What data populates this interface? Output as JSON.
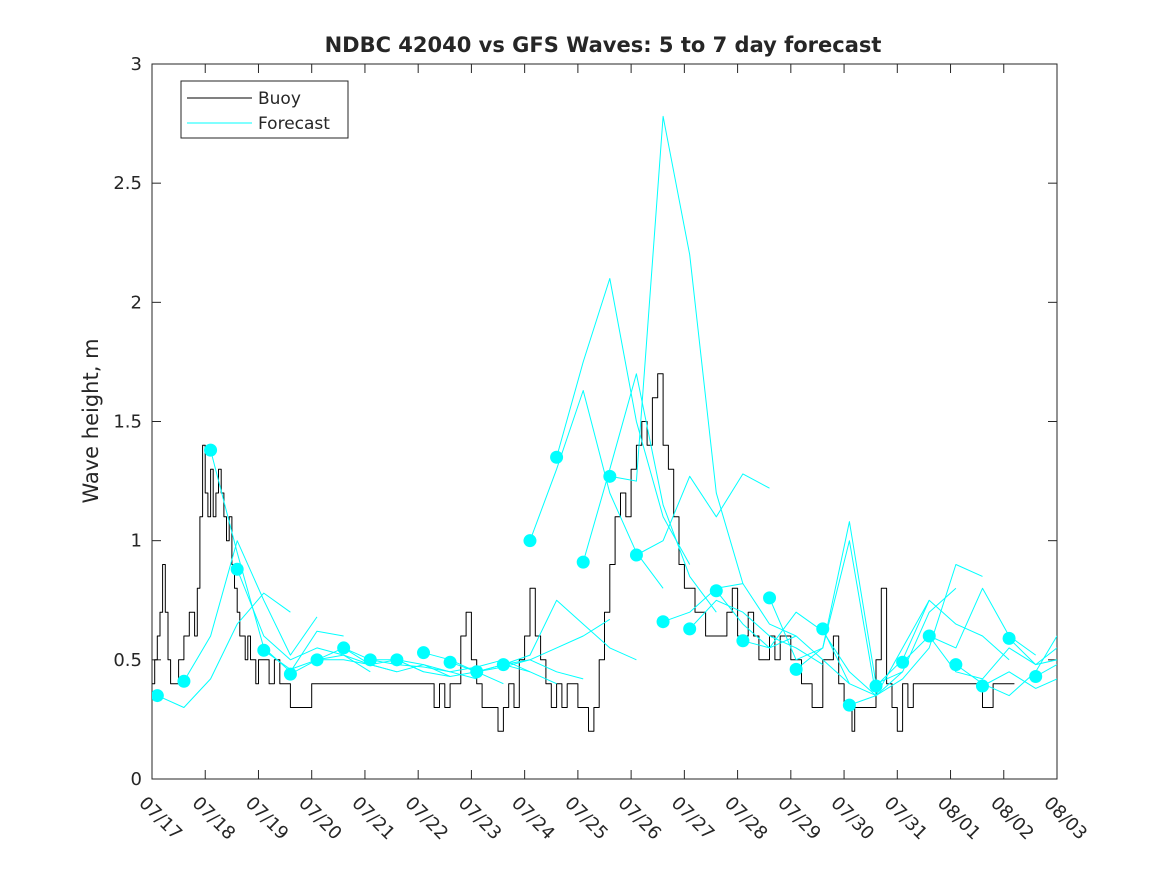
{
  "chart_data": {
    "type": "line",
    "title": "NDBC 42040 vs GFS Waves: 5 to 7 day forecast",
    "xlabel": "",
    "ylabel": "Wave height, m",
    "xlim": [
      0,
      17
    ],
    "ylim": [
      0,
      3
    ],
    "x_ticks": [
      0,
      1,
      2,
      3,
      4,
      5,
      6,
      7,
      8,
      9,
      10,
      11,
      12,
      13,
      14,
      15,
      16,
      17
    ],
    "x_tick_labels": [
      "07/17",
      "07/18",
      "07/19",
      "07/20",
      "07/21",
      "07/22",
      "07/23",
      "07/24",
      "07/25",
      "07/26",
      "07/27",
      "07/28",
      "07/29",
      "07/30",
      "07/31",
      "08/01",
      "08/02",
      "08/03"
    ],
    "y_ticks": [
      0,
      0.5,
      1,
      1.5,
      2,
      2.5,
      3
    ],
    "y_tick_labels": [
      "0",
      "0.5",
      "1",
      "1.5",
      "2",
      "2.5",
      "3"
    ],
    "grid": false,
    "legend": {
      "position": "top-left",
      "entries": [
        "Buoy",
        "Forecast"
      ]
    },
    "colors": {
      "buoy": "#000000",
      "forecast": "#00ffff",
      "axes": "#262626"
    },
    "series": [
      {
        "name": "Buoy",
        "step": true,
        "x": [
          0,
          0.05,
          0.1,
          0.15,
          0.2,
          0.25,
          0.3,
          0.35,
          0.4,
          0.5,
          0.6,
          0.7,
          0.8,
          0.85,
          0.9,
          0.95,
          1.0,
          1.05,
          1.1,
          1.15,
          1.2,
          1.25,
          1.3,
          1.35,
          1.4,
          1.45,
          1.5,
          1.55,
          1.6,
          1.65,
          1.7,
          1.75,
          1.8,
          1.85,
          1.9,
          1.95,
          2.0,
          2.05,
          2.1,
          2.2,
          2.3,
          2.4,
          2.5,
          2.6,
          2.8,
          3.0,
          3.2,
          3.4,
          3.6,
          4.0,
          4.4,
          4.8,
          5.2,
          5.3,
          5.4,
          5.5,
          5.6,
          5.7,
          5.8,
          5.9,
          6.0,
          6.1,
          6.2,
          6.3,
          6.5,
          6.6,
          6.7,
          6.8,
          6.9,
          7.0,
          7.1,
          7.2,
          7.3,
          7.4,
          7.5,
          7.6,
          7.7,
          7.8,
          8.0,
          8.1,
          8.2,
          8.3,
          8.4,
          8.5,
          8.6,
          8.7,
          8.8,
          8.9,
          9.0,
          9.1,
          9.2,
          9.3,
          9.4,
          9.5,
          9.6,
          9.7,
          9.8,
          9.9,
          10.0,
          10.2,
          10.4,
          10.6,
          10.8,
          10.9,
          11.0,
          11.1,
          11.2,
          11.3,
          11.4,
          11.5,
          11.6,
          11.7,
          11.8,
          12.0,
          12.2,
          12.4,
          12.6,
          12.8,
          12.9,
          13.0,
          13.1,
          13.15,
          13.2,
          13.3,
          13.4,
          13.5,
          13.6,
          13.7,
          13.8,
          13.9,
          14.0,
          14.1,
          14.2,
          14.3,
          14.4,
          14.6,
          14.8,
          15.0,
          15.2,
          15.4,
          15.6,
          15.8,
          16.0,
          16.2
        ],
        "values": [
          0.4,
          0.5,
          0.6,
          0.7,
          0.9,
          0.7,
          0.5,
          0.4,
          0.4,
          0.5,
          0.6,
          0.7,
          0.6,
          0.8,
          1.1,
          1.4,
          1.2,
          1.1,
          1.3,
          1.1,
          1.2,
          1.3,
          1.2,
          1.1,
          1.0,
          1.1,
          0.9,
          0.8,
          0.7,
          0.6,
          0.6,
          0.5,
          0.6,
          0.5,
          0.5,
          0.4,
          0.5,
          0.5,
          0.5,
          0.4,
          0.5,
          0.4,
          0.4,
          0.3,
          0.3,
          0.4,
          0.4,
          0.4,
          0.4,
          0.4,
          0.4,
          0.4,
          0.4,
          0.3,
          0.4,
          0.3,
          0.4,
          0.4,
          0.6,
          0.7,
          0.5,
          0.4,
          0.3,
          0.3,
          0.2,
          0.3,
          0.4,
          0.3,
          0.5,
          0.6,
          0.8,
          0.6,
          0.5,
          0.4,
          0.3,
          0.4,
          0.3,
          0.4,
          0.3,
          0.3,
          0.2,
          0.3,
          0.5,
          0.7,
          0.9,
          1.1,
          1.2,
          1.1,
          1.3,
          1.4,
          1.5,
          1.4,
          1.6,
          1.7,
          1.4,
          1.3,
          1.1,
          0.9,
          0.8,
          0.7,
          0.6,
          0.6,
          0.7,
          0.8,
          0.6,
          0.6,
          0.7,
          0.6,
          0.5,
          0.5,
          0.6,
          0.5,
          0.6,
          0.5,
          0.4,
          0.3,
          0.5,
          0.6,
          0.4,
          0.3,
          0.3,
          0.2,
          0.3,
          0.3,
          0.3,
          0.3,
          0.5,
          0.8,
          0.4,
          0.3,
          0.2,
          0.4,
          0.3,
          0.4,
          0.4,
          0.4,
          0.4,
          0.4,
          0.4,
          0.4,
          0.3,
          0.4,
          0.4,
          0.4
        ]
      },
      {
        "name": "Forecast",
        "x": [
          0.1,
          0.6,
          1.1,
          1.6,
          2.1,
          2.6
        ],
        "values": [
          0.35,
          0.3,
          0.42,
          0.65,
          0.78,
          0.7
        ]
      },
      {
        "name": "Forecast",
        "x": [
          0.6,
          1.1,
          1.6,
          2.1,
          2.6,
          3.1
        ],
        "values": [
          0.41,
          0.6,
          1.0,
          0.75,
          0.52,
          0.68
        ]
      },
      {
        "name": "Forecast",
        "x": [
          1.1,
          1.6,
          2.1,
          2.6,
          3.1,
          3.6
        ],
        "values": [
          1.38,
          0.95,
          0.55,
          0.45,
          0.62,
          0.6
        ]
      },
      {
        "name": "Forecast",
        "x": [
          1.6,
          2.1,
          2.6,
          3.1,
          3.6,
          4.1
        ],
        "values": [
          0.88,
          0.6,
          0.5,
          0.55,
          0.52,
          0.45
        ]
      },
      {
        "name": "Forecast",
        "x": [
          2.1,
          2.6,
          3.1,
          3.6,
          4.1,
          4.6
        ],
        "values": [
          0.54,
          0.46,
          0.5,
          0.55,
          0.48,
          0.45
        ]
      },
      {
        "name": "Forecast",
        "x": [
          2.6,
          3.1,
          3.6,
          4.1,
          4.6,
          5.1
        ],
        "values": [
          0.44,
          0.5,
          0.5,
          0.48,
          0.5,
          0.45
        ]
      },
      {
        "name": "Forecast",
        "x": [
          3.1,
          3.6,
          4.1,
          4.6,
          5.1,
          5.6
        ],
        "values": [
          0.5,
          0.52,
          0.48,
          0.45,
          0.48,
          0.43
        ]
      },
      {
        "name": "Forecast",
        "x": [
          3.6,
          4.1,
          4.6,
          5.1,
          5.6,
          6.1
        ],
        "values": [
          0.55,
          0.5,
          0.48,
          0.47,
          0.45,
          0.42
        ]
      },
      {
        "name": "Forecast",
        "x": [
          4.1,
          4.6,
          5.1,
          5.6,
          6.1,
          6.6
        ],
        "values": [
          0.5,
          0.5,
          0.45,
          0.43,
          0.45,
          0.4
        ]
      },
      {
        "name": "Forecast",
        "x": [
          4.6,
          5.1,
          5.6,
          6.1,
          6.6,
          7.1
        ],
        "values": [
          0.5,
          0.48,
          0.45,
          0.47,
          0.5,
          0.45
        ]
      },
      {
        "name": "Forecast",
        "x": [
          5.1,
          5.6,
          6.1,
          6.6,
          7.1,
          7.6
        ],
        "values": [
          0.53,
          0.5,
          0.45,
          0.48,
          0.45,
          0.4
        ]
      },
      {
        "name": "Forecast",
        "x": [
          5.6,
          6.1,
          6.6,
          7.1,
          7.6,
          8.1
        ],
        "values": [
          0.49,
          0.45,
          0.47,
          0.5,
          0.45,
          0.42
        ]
      },
      {
        "name": "Forecast",
        "x": [
          6.1,
          6.6,
          7.1,
          7.6,
          8.1,
          8.6
        ],
        "values": [
          0.45,
          0.48,
          0.5,
          0.55,
          0.6,
          0.67
        ]
      },
      {
        "name": "Forecast",
        "x": [
          6.6,
          7.1,
          7.6,
          8.1,
          8.6,
          9.1
        ],
        "values": [
          0.48,
          0.52,
          0.75,
          0.65,
          0.55,
          0.5
        ]
      },
      {
        "name": "Forecast",
        "x": [
          7.1,
          7.6,
          8.1,
          8.6,
          9.1,
          9.6
        ],
        "values": [
          1.0,
          1.3,
          1.63,
          1.2,
          0.95,
          0.8
        ]
      },
      {
        "name": "Forecast",
        "x": [
          7.6,
          8.1,
          8.6,
          9.1,
          9.6,
          10.1
        ],
        "values": [
          1.35,
          1.75,
          2.1,
          1.5,
          1.1,
          0.9
        ]
      },
      {
        "name": "Forecast",
        "x": [
          8.1,
          8.6,
          9.1,
          9.6,
          10.1,
          10.6
        ],
        "values": [
          0.91,
          1.3,
          1.7,
          1.15,
          0.85,
          0.7
        ]
      },
      {
        "name": "Forecast",
        "x": [
          8.6,
          9.1,
          9.6,
          10.1,
          10.6,
          11.1
        ],
        "values": [
          1.27,
          1.25,
          2.78,
          2.2,
          1.2,
          0.82
        ]
      },
      {
        "name": "Forecast",
        "x": [
          9.1,
          9.6,
          10.1,
          10.6,
          11.1,
          11.6
        ],
        "values": [
          0.94,
          1.0,
          1.27,
          1.1,
          1.28,
          1.22
        ]
      },
      {
        "name": "Forecast",
        "x": [
          9.6,
          10.1,
          10.6,
          11.1,
          11.6,
          12.1
        ],
        "values": [
          0.66,
          0.7,
          0.8,
          0.82,
          0.65,
          0.6
        ]
      },
      {
        "name": "Forecast",
        "x": [
          10.1,
          10.6,
          11.1,
          11.6,
          12.1,
          12.6
        ],
        "values": [
          0.63,
          0.75,
          0.7,
          0.6,
          0.55,
          0.48
        ]
      },
      {
        "name": "Forecast",
        "x": [
          10.6,
          11.1,
          11.6,
          12.1,
          12.6,
          13.1
        ],
        "values": [
          0.79,
          0.65,
          0.55,
          0.6,
          0.5,
          0.4
        ]
      },
      {
        "name": "Forecast",
        "x": [
          11.1,
          11.6,
          12.1,
          12.6,
          13.1,
          13.6
        ],
        "values": [
          0.58,
          0.55,
          0.7,
          0.62,
          0.45,
          0.35
        ]
      },
      {
        "name": "Forecast",
        "x": [
          11.6,
          12.1,
          12.6,
          13.1,
          13.6,
          14.1
        ],
        "values": [
          0.76,
          0.5,
          0.55,
          1.08,
          0.4,
          0.45
        ]
      },
      {
        "name": "Forecast",
        "x": [
          12.1,
          12.6,
          13.1,
          13.6,
          14.1,
          14.6
        ],
        "values": [
          0.46,
          0.55,
          1.0,
          0.35,
          0.55,
          0.75
        ]
      },
      {
        "name": "Forecast",
        "x": [
          12.6,
          13.1,
          13.6,
          14.1,
          14.6,
          15.1
        ],
        "values": [
          0.63,
          0.4,
          0.35,
          0.45,
          0.7,
          0.8
        ]
      },
      {
        "name": "Forecast",
        "x": [
          13.1,
          13.6,
          14.1,
          14.6,
          15.1,
          15.6
        ],
        "values": [
          0.31,
          0.35,
          0.42,
          0.55,
          0.9,
          0.85
        ]
      },
      {
        "name": "Forecast",
        "x": [
          13.6,
          14.1,
          14.6,
          15.1,
          15.6,
          16.1
        ],
        "values": [
          0.39,
          0.5,
          0.75,
          0.65,
          0.6,
          0.5
        ]
      },
      {
        "name": "Forecast",
        "x": [
          14.1,
          14.6,
          15.1,
          15.6,
          16.1,
          16.6
        ],
        "values": [
          0.49,
          0.6,
          0.55,
          0.8,
          0.6,
          0.52
        ]
      },
      {
        "name": "Forecast",
        "x": [
          14.6,
          15.1,
          15.6,
          16.1,
          16.6,
          17.0
        ],
        "values": [
          0.6,
          0.45,
          0.42,
          0.55,
          0.48,
          0.55
        ]
      },
      {
        "name": "Forecast",
        "x": [
          15.1,
          15.6,
          16.1,
          16.6,
          17.0
        ],
        "values": [
          0.48,
          0.4,
          0.35,
          0.45,
          0.6
        ]
      },
      {
        "name": "Forecast",
        "x": [
          15.6,
          16.1,
          16.6,
          17.0
        ],
        "values": [
          0.39,
          0.45,
          0.38,
          0.42
        ]
      },
      {
        "name": "Forecast",
        "x": [
          16.1,
          16.6,
          17.0
        ],
        "values": [
          0.59,
          0.48,
          0.5
        ]
      },
      {
        "name": "Forecast",
        "x": [
          16.6,
          17.0
        ],
        "values": [
          0.43,
          0.48
        ]
      }
    ]
  }
}
